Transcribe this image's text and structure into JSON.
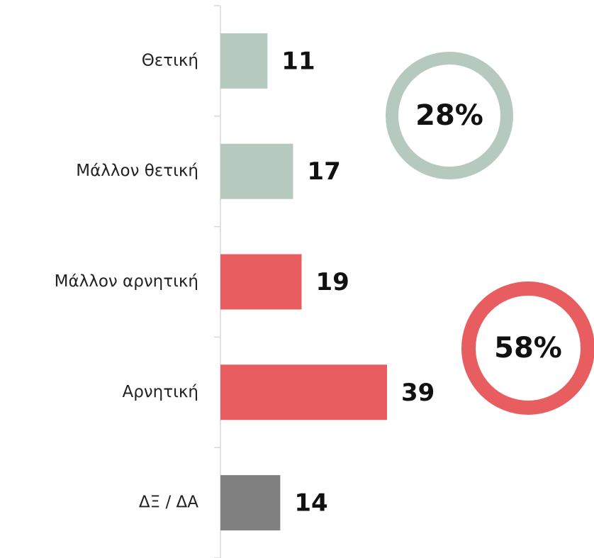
{
  "chart_data": {
    "type": "bar",
    "orientation": "horizontal",
    "categories": [
      "Θετική",
      "Μάλλον θετική",
      "Μάλλον αρνητική",
      "Αρνητική",
      "ΔΞ / ΔΑ"
    ],
    "values": [
      11,
      17,
      19,
      39,
      14
    ],
    "colors": [
      "#b5c9bf",
      "#b5c9bf",
      "#e85d5f",
      "#e85d5f",
      "#808080"
    ],
    "annotations": [
      {
        "text": "28%",
        "color": "#b5c9bf"
      },
      {
        "text": "58%",
        "color": "#e85d5f"
      }
    ]
  }
}
